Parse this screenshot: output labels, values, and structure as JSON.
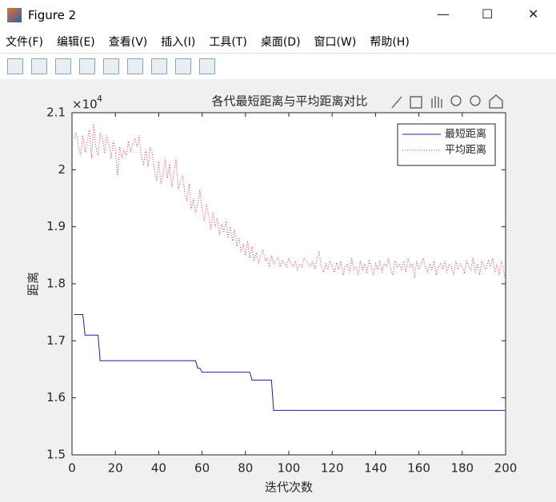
{
  "window": {
    "title": "Figure 2",
    "menu": [
      "文件(F)",
      "编辑(E)",
      "查看(V)",
      "插入(I)",
      "工具(T)",
      "桌面(D)",
      "窗口(W)",
      "帮助(H)"
    ]
  },
  "chart_data": {
    "type": "line",
    "title": "各代最短距离与平均距离对比",
    "xlabel": "迭代次数",
    "ylabel": "距离",
    "y_multiplier": {
      "base": "×10",
      "exponent": "4"
    },
    "xlim": [
      0,
      200
    ],
    "xticks": [
      0,
      20,
      40,
      60,
      80,
      100,
      120,
      140,
      160,
      180,
      200
    ],
    "ylim": [
      15000,
      21000
    ],
    "yticks": [
      {
        "value": 15000,
        "label": "1.5"
      },
      {
        "value": 16000,
        "label": "1.6"
      },
      {
        "value": 17000,
        "label": "1.7"
      },
      {
        "value": 18000,
        "label": "1.8"
      },
      {
        "value": 19000,
        "label": "1.9"
      },
      {
        "value": 20000,
        "label": "2"
      },
      {
        "value": 21000,
        "label": "2.1"
      }
    ],
    "legend": "upper right",
    "grid": false,
    "x": [
      1,
      2,
      3,
      4,
      5,
      6,
      7,
      8,
      9,
      10,
      11,
      12,
      13,
      14,
      15,
      16,
      17,
      18,
      19,
      20,
      21,
      22,
      23,
      24,
      25,
      26,
      27,
      28,
      29,
      30,
      31,
      32,
      33,
      34,
      35,
      36,
      37,
      38,
      39,
      40,
      41,
      42,
      43,
      44,
      45,
      46,
      47,
      48,
      49,
      50,
      51,
      52,
      53,
      54,
      55,
      56,
      57,
      58,
      59,
      60,
      61,
      62,
      63,
      64,
      65,
      66,
      67,
      68,
      69,
      70,
      71,
      72,
      73,
      74,
      75,
      76,
      77,
      78,
      79,
      80,
      81,
      82,
      83,
      84,
      85,
      86,
      87,
      88,
      89,
      90,
      91,
      92,
      93,
      94,
      95,
      96,
      97,
      98,
      99,
      100,
      101,
      102,
      103,
      104,
      105,
      106,
      107,
      108,
      109,
      110,
      111,
      112,
      113,
      114,
      115,
      116,
      117,
      118,
      119,
      120,
      121,
      122,
      123,
      124,
      125,
      126,
      127,
      128,
      129,
      130,
      131,
      132,
      133,
      134,
      135,
      136,
      137,
      138,
      139,
      140,
      141,
      142,
      143,
      144,
      145,
      146,
      147,
      148,
      149,
      150,
      151,
      152,
      153,
      154,
      155,
      156,
      157,
      158,
      159,
      160,
      161,
      162,
      163,
      164,
      165,
      166,
      167,
      168,
      169,
      170,
      171,
      172,
      173,
      174,
      175,
      176,
      177,
      178,
      179,
      180,
      181,
      182,
      183,
      184,
      185,
      186,
      187,
      188,
      189,
      190,
      191,
      192,
      193,
      194,
      195,
      196,
      197,
      198,
      199,
      200
    ],
    "series": [
      {
        "name": "最短距离",
        "color": "#1f1fa8",
        "style": "solid",
        "values": [
          17460,
          17460,
          17460,
          17460,
          17460,
          17100,
          17100,
          17100,
          17100,
          17100,
          17100,
          17100,
          16650,
          16650,
          16650,
          16650,
          16650,
          16650,
          16650,
          16650,
          16650,
          16650,
          16650,
          16650,
          16650,
          16650,
          16650,
          16650,
          16650,
          16650,
          16650,
          16650,
          16650,
          16650,
          16650,
          16650,
          16650,
          16650,
          16650,
          16650,
          16650,
          16650,
          16650,
          16650,
          16650,
          16650,
          16650,
          16650,
          16650,
          16650,
          16650,
          16650,
          16650,
          16650,
          16650,
          16650,
          16650,
          16520,
          16520,
          16450,
          16450,
          16450,
          16450,
          16450,
          16450,
          16450,
          16450,
          16450,
          16450,
          16450,
          16450,
          16450,
          16450,
          16450,
          16450,
          16450,
          16450,
          16450,
          16450,
          16450,
          16450,
          16450,
          16310,
          16310,
          16310,
          16310,
          16310,
          16310,
          16310,
          16310,
          16310,
          16310,
          15780,
          15780,
          15780,
          15780,
          15780,
          15780,
          15780,
          15780,
          15780,
          15780,
          15780,
          15780,
          15780,
          15780,
          15780,
          15780,
          15780,
          15780,
          15780,
          15780,
          15780,
          15780,
          15780,
          15780,
          15780,
          15780,
          15780,
          15780,
          15780,
          15780,
          15780,
          15780,
          15780,
          15780,
          15780,
          15780,
          15780,
          15780,
          15780,
          15780,
          15780,
          15780,
          15780,
          15780,
          15780,
          15780,
          15780,
          15780,
          15780,
          15780,
          15780,
          15780,
          15780,
          15780,
          15780,
          15780,
          15780,
          15780,
          15780,
          15780,
          15780,
          15780,
          15780,
          15780,
          15780,
          15780,
          15780,
          15780,
          15780,
          15780,
          15780,
          15780,
          15780,
          15780,
          15780,
          15780,
          15780,
          15780,
          15780,
          15780,
          15780,
          15780,
          15780,
          15780,
          15780,
          15780,
          15780,
          15780,
          15780,
          15780,
          15780,
          15780,
          15780,
          15780,
          15780,
          15780,
          15780,
          15780,
          15780,
          15780,
          15780,
          15780,
          15780,
          15780,
          15780,
          15780,
          15780,
          15780
        ]
      },
      {
        "name": "平均距离",
        "color": "#e03a3a",
        "style": "dotted",
        "values": [
          20550,
          20650,
          20400,
          20250,
          20600,
          20300,
          20500,
          20700,
          20200,
          20800,
          20400,
          20250,
          20650,
          20550,
          20300,
          20600,
          20450,
          20200,
          20500,
          20350,
          19900,
          20400,
          20200,
          20350,
          20250,
          20500,
          20300,
          20450,
          20550,
          20400,
          20600,
          20200,
          20100,
          20350,
          20050,
          20400,
          20300,
          20000,
          19800,
          20150,
          19750,
          19900,
          20200,
          19850,
          20100,
          19700,
          19950,
          20200,
          19650,
          19800,
          19900,
          19600,
          19450,
          19750,
          19300,
          19500,
          19250,
          19400,
          19650,
          19300,
          19100,
          19400,
          19200,
          18950,
          19250,
          19000,
          19150,
          18850,
          19050,
          18900,
          19100,
          18800,
          19000,
          18750,
          18950,
          18650,
          18800,
          18550,
          18700,
          18500,
          18750,
          18450,
          18650,
          18400,
          18550,
          18350,
          18500,
          18600,
          18400,
          18450,
          18300,
          18500,
          18350,
          18400,
          18450,
          18300,
          18400,
          18350,
          18300,
          18450,
          18350,
          18300,
          18400,
          18250,
          18350,
          18300,
          18450,
          18400,
          18350,
          18300,
          18400,
          18250,
          18450,
          18550,
          18300,
          18200,
          18350,
          18250,
          18400,
          18300,
          18200,
          18350,
          18250,
          18400,
          18150,
          18300,
          18350,
          18200,
          18450,
          18250,
          18300,
          18150,
          18400,
          18250,
          18350,
          18200,
          18400,
          18300,
          18150,
          18350,
          18250,
          18400,
          18200,
          18350,
          18300,
          18450,
          18250,
          18150,
          18400,
          18300,
          18350,
          18250,
          18400,
          18200,
          18450,
          18300,
          18350,
          18100,
          18400,
          18250,
          18350,
          18450,
          18300,
          18200,
          18350,
          18250,
          18400,
          18150,
          18300,
          18350,
          18250,
          18400,
          18200,
          18350,
          18300,
          18150,
          18400,
          18250,
          18350,
          18300,
          18200,
          18400,
          18300,
          18250,
          18450,
          18200,
          18350,
          18150,
          18400,
          18300,
          18250,
          18400,
          18300,
          18450,
          18200,
          18350,
          18150,
          18400,
          18250,
          18050
        ]
      }
    ]
  }
}
